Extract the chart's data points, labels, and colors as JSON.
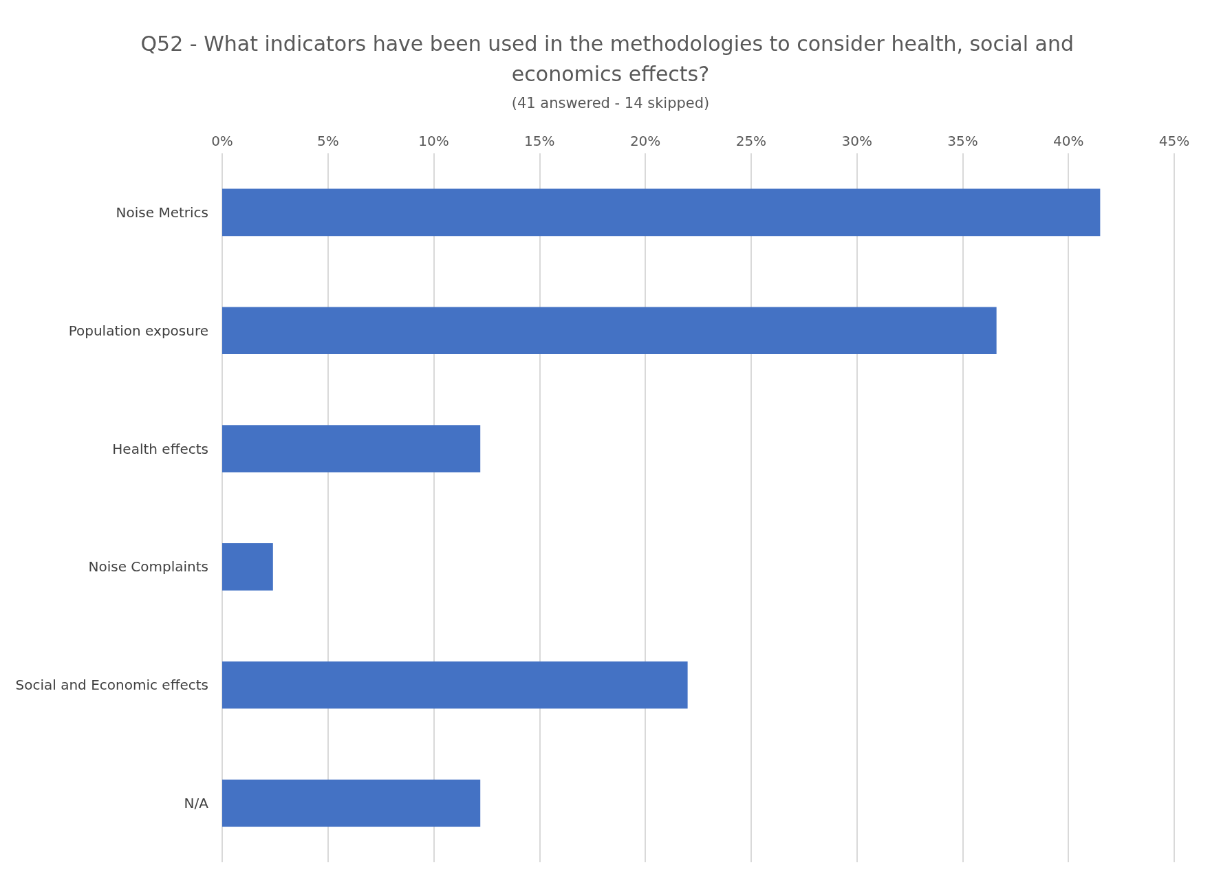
{
  "chart_data": {
    "type": "bar",
    "orientation": "horizontal",
    "title": "Q52 - What indicators have been used in the methodologies to consider health, social and economics effects?",
    "subtitle": "(41 answered - 14 skipped)",
    "categories": [
      "Noise Metrics",
      "Population exposure",
      "Health effects",
      "Noise Complaints",
      "Social and Economic effects",
      "N/A"
    ],
    "values": [
      41.5,
      36.6,
      12.2,
      2.4,
      22.0,
      12.2
    ],
    "color": "#4472c4",
    "xlim": [
      0,
      45
    ],
    "xticks": [
      {
        "value": 0,
        "label": "0%"
      },
      {
        "value": 5,
        "label": "5%"
      },
      {
        "value": 10,
        "label": "10%"
      },
      {
        "value": 15,
        "label": "15%"
      },
      {
        "value": 20,
        "label": "20%"
      },
      {
        "value": 25,
        "label": "25%"
      },
      {
        "value": 30,
        "label": "30%"
      },
      {
        "value": 35,
        "label": "35%"
      },
      {
        "value": 40,
        "label": "40%"
      },
      {
        "value": 45,
        "label": "45%"
      }
    ],
    "grid": "x"
  }
}
